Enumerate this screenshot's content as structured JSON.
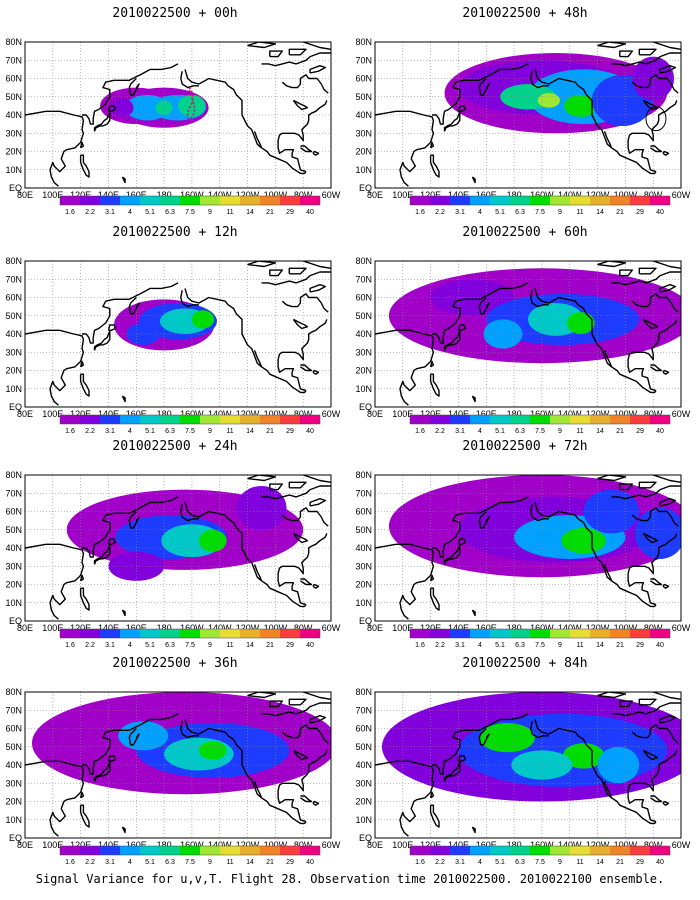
{
  "caption": "Signal Variance for u,v,T. Flight 28. Observation time 2010022500. 2010022100 ensemble.",
  "lat_labels": [
    "80N",
    "70N",
    "60N",
    "50N",
    "40N",
    "30N",
    "20N",
    "10N",
    "EQ"
  ],
  "lon_labels": [
    "80E",
    "100E",
    "120E",
    "140E",
    "160E",
    "180",
    "160W",
    "140W",
    "120W",
    "100W",
    "80W",
    "60W"
  ],
  "colorbar": {
    "labels": [
      "1.6",
      "2.2",
      "3.1",
      "4",
      "5.1",
      "6.3",
      "7.5",
      "9",
      "11",
      "14",
      "21",
      "29",
      "40"
    ],
    "colors": [
      "#a000c8",
      "#8200dc",
      "#1e3cff",
      "#00a0ff",
      "#00c8c8",
      "#00d28c",
      "#00dc00",
      "#a0e632",
      "#e6dc32",
      "#e6af2d",
      "#f08228",
      "#fa3c3c",
      "#f00082"
    ]
  },
  "panels": [
    {
      "title": "2010022500 + 00h"
    },
    {
      "title": "2010022500 + 48h"
    },
    {
      "title": "2010022500 + 12h"
    },
    {
      "title": "2010022500 + 60h"
    },
    {
      "title": "2010022500 + 24h"
    },
    {
      "title": "2010022500 + 72h"
    },
    {
      "title": "2010022500 + 36h"
    },
    {
      "title": "2010022500 + 84h"
    }
  ]
}
